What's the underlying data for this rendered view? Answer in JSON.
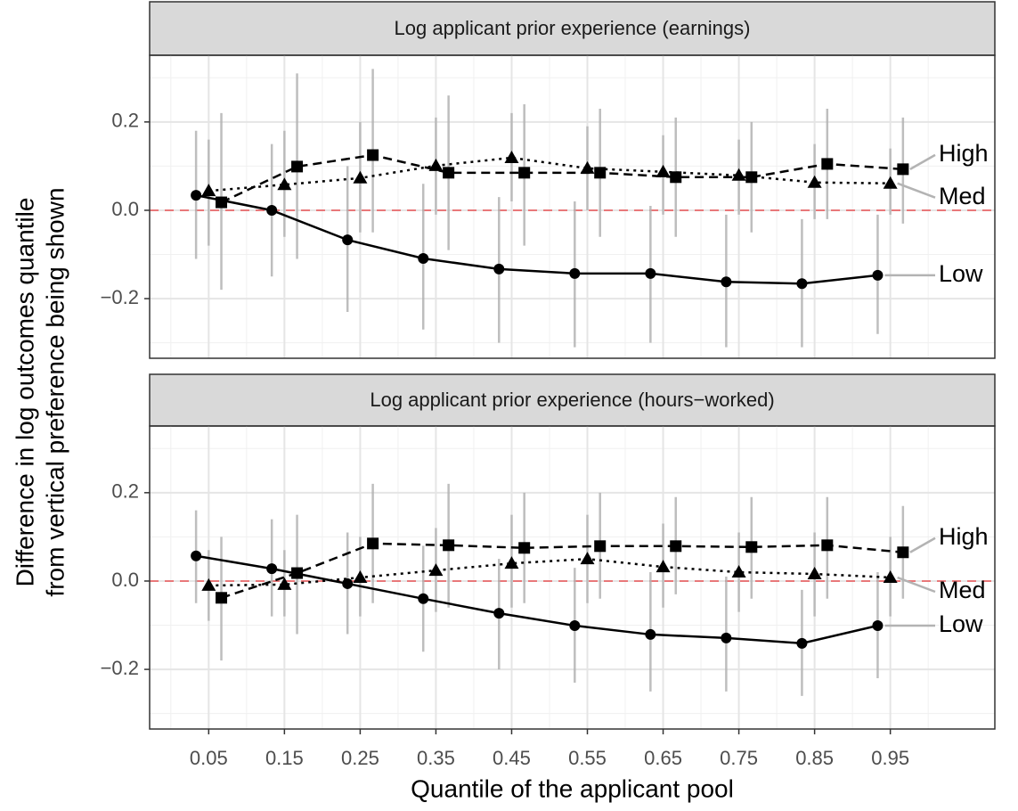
{
  "chart_data": [
    {
      "type": "line",
      "title": "Log applicant prior experience (earnings)",
      "ylabel": [
        "Difference in log outcomes quantile",
        "from vertical preference being shown"
      ],
      "x": [
        0.05,
        0.15,
        0.25,
        0.35,
        0.45,
        0.55,
        0.65,
        0.75,
        0.85,
        0.95
      ],
      "xlim": [
        -0.028,
        1.088
      ],
      "xticks": [
        0.05,
        0.15,
        0.25,
        0.35,
        0.45,
        0.55,
        0.65,
        0.75,
        0.85,
        0.95
      ],
      "ylim": [
        -0.335,
        0.351
      ],
      "yticks": [
        {
          "value": -0.2,
          "label": "−0.2"
        },
        {
          "value": 0,
          "label": "0.0"
        },
        0.2
      ],
      "grid": true,
      "reference_line": 0,
      "reference_color": "#e8787a",
      "series": [
        {
          "name": "Low",
          "color": "#000000",
          "marker": "circle",
          "dash": "solid",
          "values": [
            0.034,
            0.0,
            -0.067,
            -0.109,
            -0.133,
            -0.143,
            -0.143,
            -0.162,
            -0.166,
            -0.147
          ],
          "lower": [
            -0.11,
            -0.15,
            -0.23,
            -0.27,
            -0.3,
            -0.31,
            -0.3,
            -0.31,
            -0.31,
            -0.28
          ],
          "upper": [
            0.18,
            0.15,
            0.1,
            0.06,
            0.03,
            0.02,
            0.01,
            -0.01,
            -0.02,
            -0.01
          ]
        },
        {
          "name": "Med",
          "color": "#000000",
          "marker": "triangle",
          "dash": "dotted",
          "values": [
            0.044,
            0.058,
            0.073,
            0.101,
            0.119,
            0.095,
            0.087,
            0.079,
            0.063,
            0.061
          ],
          "lower": [
            -0.08,
            -0.06,
            -0.05,
            -0.01,
            0.02,
            0.0,
            -0.01,
            -0.01,
            -0.02,
            -0.01
          ],
          "upper": [
            0.16,
            0.18,
            0.2,
            0.21,
            0.22,
            0.19,
            0.17,
            0.16,
            0.15,
            0.14
          ]
        },
        {
          "name": "High",
          "color": "#000000",
          "marker": "square",
          "dash": "dashed",
          "values": [
            0.018,
            0.099,
            0.125,
            0.085,
            0.085,
            0.085,
            0.075,
            0.075,
            0.105,
            0.093
          ],
          "lower": [
            -0.18,
            -0.11,
            -0.05,
            -0.09,
            -0.08,
            -0.06,
            -0.06,
            -0.05,
            -0.02,
            -0.03
          ],
          "upper": [
            0.22,
            0.31,
            0.32,
            0.26,
            0.24,
            0.23,
            0.21,
            0.2,
            0.23,
            0.21
          ]
        }
      ]
    },
    {
      "type": "line",
      "title": "Log applicant prior experience (hours−worked)",
      "xlabel": "Quantile of the applicant pool",
      "x": [
        0.05,
        0.15,
        0.25,
        0.35,
        0.45,
        0.55,
        0.65,
        0.75,
        0.85,
        0.95
      ],
      "xlim": [
        -0.028,
        1.088
      ],
      "xticks": [
        0.05,
        0.15,
        0.25,
        0.35,
        0.45,
        0.55,
        0.65,
        0.75,
        0.85,
        0.95
      ],
      "ylim": [
        -0.335,
        0.351
      ],
      "yticks": [
        {
          "value": -0.2,
          "label": "−0.2"
        },
        {
          "value": 0,
          "label": "0.0"
        },
        0.2
      ],
      "grid": true,
      "reference_line": 0,
      "reference_color": "#e8787a",
      "series": [
        {
          "name": "Low",
          "color": "#000000",
          "marker": "circle",
          "dash": "solid",
          "values": [
            0.057,
            0.028,
            -0.006,
            -0.04,
            -0.073,
            -0.101,
            -0.121,
            -0.129,
            -0.141,
            -0.101
          ],
          "lower": [
            -0.05,
            -0.08,
            -0.12,
            -0.16,
            -0.2,
            -0.23,
            -0.25,
            -0.25,
            -0.26,
            -0.22
          ],
          "upper": [
            0.16,
            0.14,
            0.11,
            0.08,
            0.05,
            0.03,
            0.02,
            0.01,
            -0.02,
            0.02
          ]
        },
        {
          "name": "Med",
          "color": "#000000",
          "marker": "triangle",
          "dash": "dotted",
          "values": [
            -0.01,
            -0.008,
            0.008,
            0.024,
            0.04,
            0.05,
            0.032,
            0.02,
            0.016,
            0.008
          ],
          "lower": [
            -0.09,
            -0.08,
            -0.08,
            -0.07,
            -0.06,
            -0.05,
            -0.06,
            -0.07,
            -0.08,
            -0.08
          ],
          "upper": [
            0.07,
            0.07,
            0.1,
            0.12,
            0.15,
            0.15,
            0.13,
            0.11,
            0.11,
            0.1
          ]
        },
        {
          "name": "High",
          "color": "#000000",
          "marker": "square",
          "dash": "dashed",
          "values": [
            -0.038,
            0.018,
            0.085,
            0.081,
            0.075,
            0.079,
            0.079,
            0.077,
            0.081,
            0.065
          ],
          "lower": [
            -0.18,
            -0.12,
            -0.05,
            -0.06,
            -0.05,
            -0.04,
            -0.03,
            -0.04,
            -0.04,
            -0.04
          ],
          "upper": [
            0.1,
            0.15,
            0.22,
            0.22,
            0.2,
            0.2,
            0.19,
            0.19,
            0.19,
            0.17
          ]
        }
      ]
    }
  ]
}
